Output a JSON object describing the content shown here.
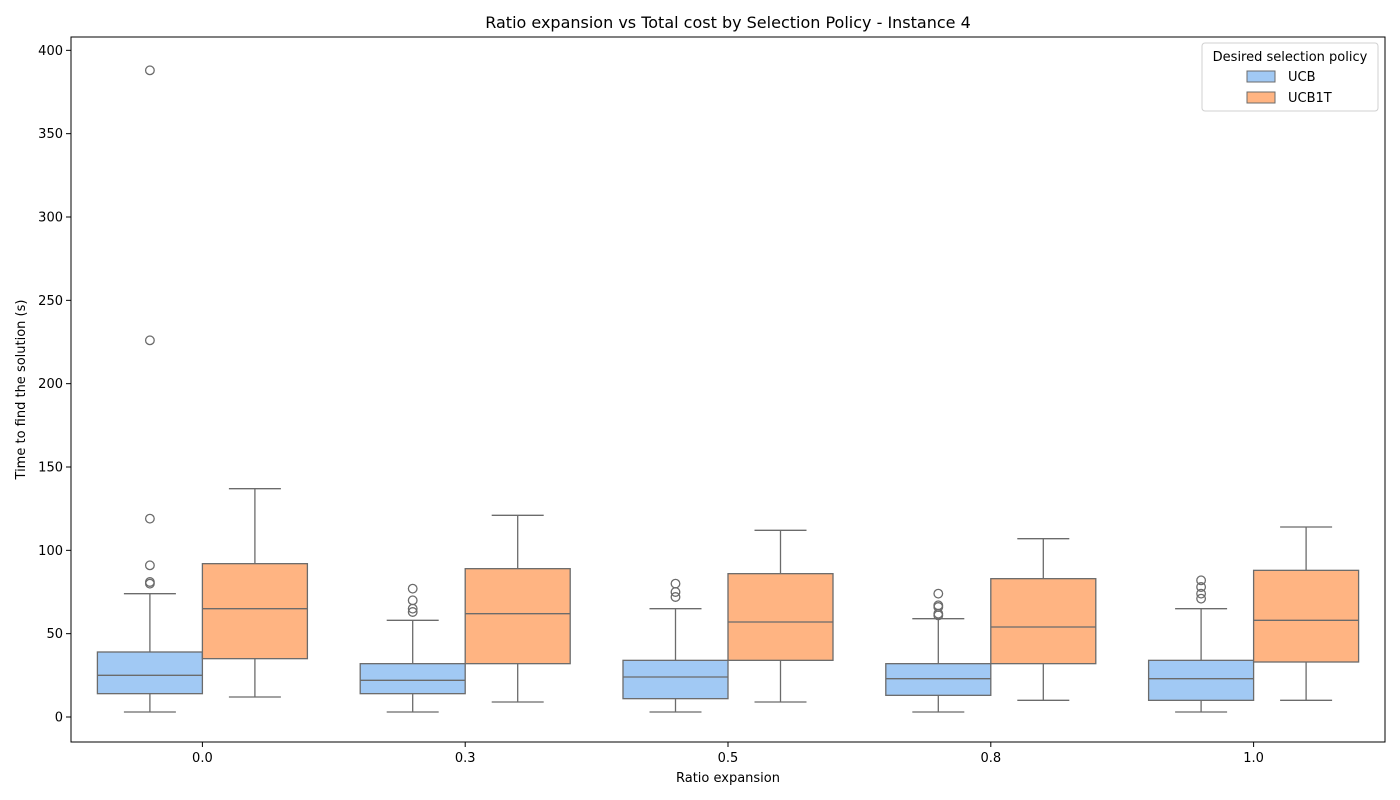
{
  "chart_data": {
    "type": "box",
    "title": "Ratio expansion vs Total cost by Selection Policy - Instance 4",
    "xlabel": "Ratio expansion",
    "ylabel": "Time to find the solution (s)",
    "categories": [
      "0.0",
      "0.3",
      "0.5",
      "0.8",
      "1.0"
    ],
    "ylim": [
      -15,
      408
    ],
    "yticks": [
      0,
      50,
      100,
      150,
      200,
      250,
      300,
      350,
      400
    ],
    "legend": {
      "title": "Desired selection policy",
      "placement": "top-right"
    },
    "series": [
      {
        "name": "UCB",
        "color": "#a1c9f4",
        "boxes": [
          {
            "whisker_low": 3,
            "q1": 14,
            "median": 25,
            "q3": 39,
            "whisker_high": 74,
            "outliers": [
              388,
              226,
              119,
              91,
              81,
              80
            ]
          },
          {
            "whisker_low": 3,
            "q1": 14,
            "median": 22,
            "q3": 32,
            "whisker_high": 58,
            "outliers": [
              77,
              70,
              65,
              63
            ]
          },
          {
            "whisker_low": 3,
            "q1": 11,
            "median": 24,
            "q3": 34,
            "whisker_high": 65,
            "outliers": [
              80,
              75,
              72
            ]
          },
          {
            "whisker_low": 3,
            "q1": 13,
            "median": 23,
            "q3": 32,
            "whisker_high": 59,
            "outliers": [
              74,
              67,
              66,
              62,
              61
            ]
          },
          {
            "whisker_low": 3,
            "q1": 10,
            "median": 23,
            "q3": 34,
            "whisker_high": 65,
            "outliers": [
              82,
              78,
              74,
              71
            ]
          }
        ]
      },
      {
        "name": "UCB1T",
        "color": "#ffb482",
        "boxes": [
          {
            "whisker_low": 12,
            "q1": 35,
            "median": 65,
            "q3": 92,
            "whisker_high": 137,
            "outliers": []
          },
          {
            "whisker_low": 9,
            "q1": 32,
            "median": 62,
            "q3": 89,
            "whisker_high": 121,
            "outliers": []
          },
          {
            "whisker_low": 9,
            "q1": 34,
            "median": 57,
            "q3": 86,
            "whisker_high": 112,
            "outliers": []
          },
          {
            "whisker_low": 10,
            "q1": 32,
            "median": 54,
            "q3": 83,
            "whisker_high": 107,
            "outliers": []
          },
          {
            "whisker_low": 10,
            "q1": 33,
            "median": 58,
            "q3": 88,
            "whisker_high": 114,
            "outliers": []
          }
        ]
      }
    ],
    "edge_color": "#6b6b6b",
    "grid": false
  }
}
